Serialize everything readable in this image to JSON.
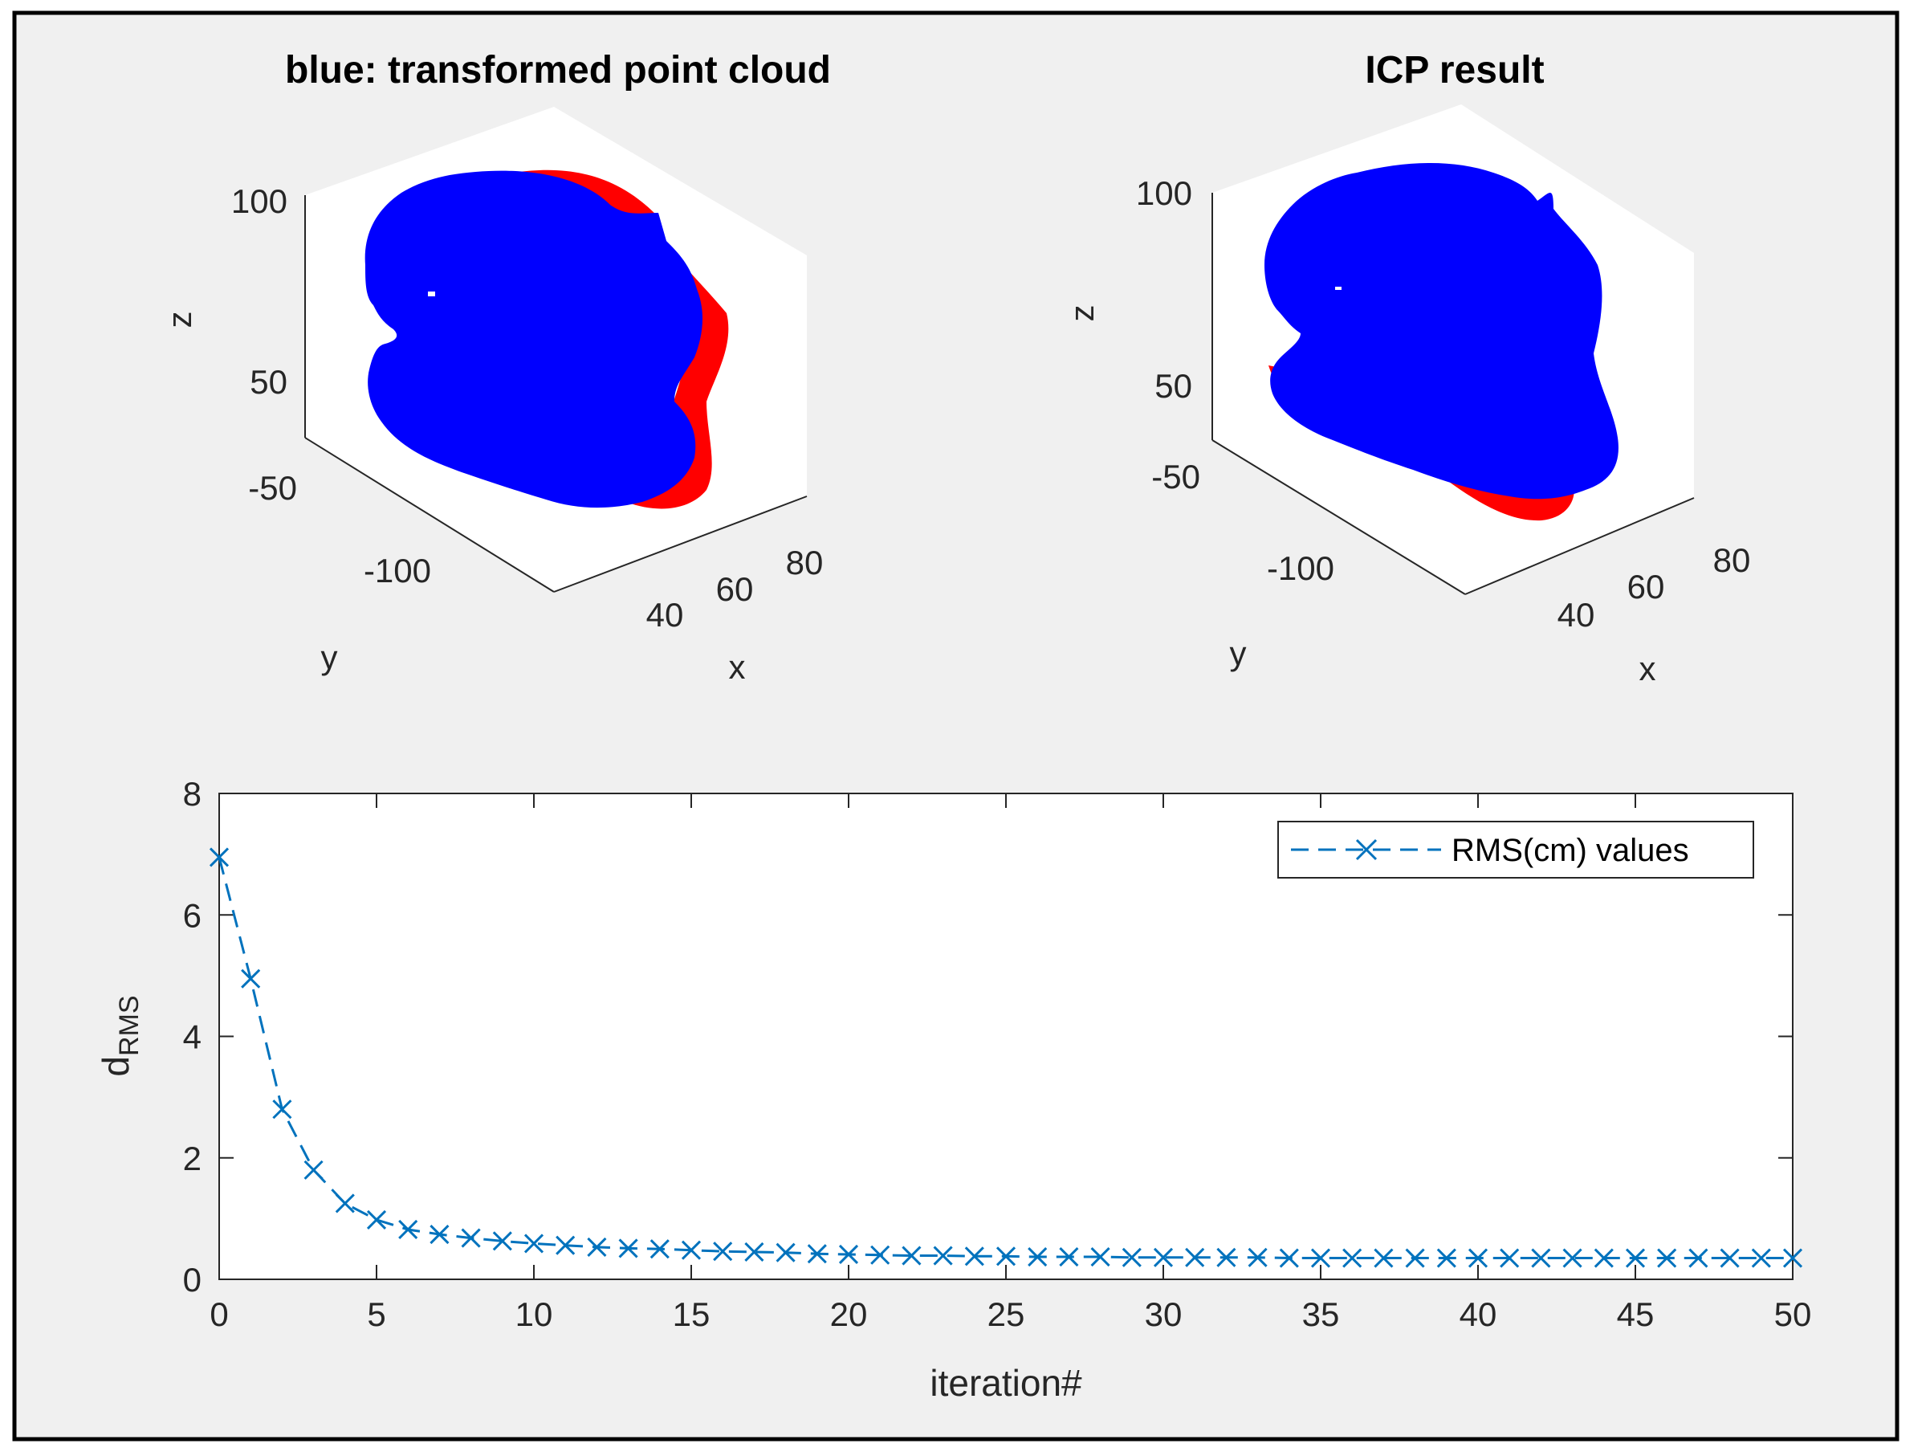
{
  "colors": {
    "figure_bg": "#f0f0f0",
    "frame": "#000000",
    "target_cloud": "#ff0000",
    "transformed_cloud": "#0000ff",
    "series_line": "#0072bd",
    "axes": "#262626"
  },
  "chart_data": [
    {
      "type": "scatter3d",
      "title": "blue: transformed point cloud",
      "xlabel": "x",
      "ylabel": "y",
      "zlabel": "z",
      "x_ticks": [
        "40",
        "60",
        "80"
      ],
      "y_ticks": [
        "-100",
        "-50"
      ],
      "z_ticks": [
        "50",
        "100"
      ],
      "series": [
        {
          "color": "#ff0000"
        },
        {
          "color": "#0000ff"
        }
      ]
    },
    {
      "type": "scatter3d",
      "title": "ICP result",
      "xlabel": "x",
      "ylabel": "y",
      "zlabel": "z",
      "x_ticks": [
        "40",
        "60",
        "80"
      ],
      "y_ticks": [
        "-100",
        "-50"
      ],
      "z_ticks": [
        "50",
        "100"
      ],
      "series": [
        {
          "color": "#ff0000"
        },
        {
          "color": "#0000ff"
        }
      ]
    },
    {
      "type": "line",
      "title": "",
      "xlabel": "iteration#",
      "ylabel_main": "d",
      "ylabel_sub": "RMS",
      "xlim": [
        0,
        50
      ],
      "ylim": [
        0,
        8
      ],
      "x_ticks": [
        0,
        5,
        10,
        15,
        20,
        25,
        30,
        35,
        40,
        45,
        50
      ],
      "y_ticks": [
        0,
        2,
        4,
        6,
        8
      ],
      "legend_position": "top-right",
      "series": [
        {
          "name": "RMS(cm) values",
          "color": "#0072bd",
          "line_style": "dashed",
          "marker": "x",
          "x": [
            0,
            1,
            2,
            3,
            4,
            5,
            6,
            7,
            8,
            9,
            10,
            11,
            12,
            13,
            14,
            15,
            16,
            17,
            18,
            19,
            20,
            21,
            22,
            23,
            24,
            25,
            26,
            27,
            28,
            29,
            30,
            31,
            32,
            33,
            34,
            35,
            36,
            37,
            38,
            39,
            40,
            41,
            42,
            43,
            44,
            45,
            46,
            47,
            48,
            49,
            50
          ],
          "y": [
            6.95,
            4.95,
            2.8,
            1.8,
            1.25,
            0.98,
            0.82,
            0.74,
            0.68,
            0.63,
            0.59,
            0.56,
            0.53,
            0.51,
            0.5,
            0.48,
            0.46,
            0.45,
            0.44,
            0.42,
            0.41,
            0.4,
            0.39,
            0.39,
            0.38,
            0.38,
            0.37,
            0.37,
            0.37,
            0.36,
            0.36,
            0.36,
            0.36,
            0.36,
            0.35,
            0.35,
            0.35,
            0.35,
            0.35,
            0.35,
            0.35,
            0.35,
            0.35,
            0.35,
            0.35,
            0.35,
            0.35,
            0.35,
            0.35,
            0.35,
            0.35
          ]
        }
      ]
    }
  ]
}
